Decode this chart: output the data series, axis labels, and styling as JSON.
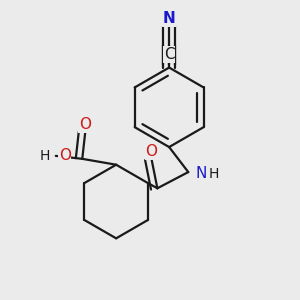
{
  "background_color": "#ebebeb",
  "bond_color": "#1a1a1a",
  "bond_width": 1.6,
  "atom_colors": {
    "N": "#1a1acc",
    "O": "#cc1a1a",
    "C": "#1a1a1a"
  },
  "font_size": 11,
  "xlim": [
    0.0,
    1.0
  ],
  "ylim": [
    0.0,
    1.0
  ]
}
